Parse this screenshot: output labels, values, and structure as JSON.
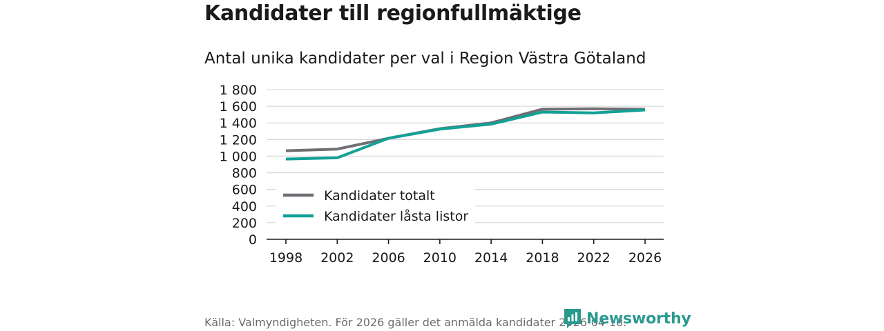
{
  "header": {
    "title": "Kandidater till regionfullmäktige",
    "subtitle": "Antal unika kandidater per val i Region Västra Götaland"
  },
  "footer": {
    "source": "Källa: Valmyndigheten. För 2026 gäller det anmälda kandidater 2026-04-10.",
    "logo_text": "Newsworthy"
  },
  "colors": {
    "series_total": "#6f6e73",
    "series_locked": "#12a196",
    "grid": "#d9d9d9",
    "axis": "#1a1a1a",
    "brand": "#2a9a8f"
  },
  "chart_data": {
    "type": "line",
    "title": "Kandidater till regionfullmäktige",
    "subtitle": "Antal unika kandidater per val i Region Västra Götaland",
    "xlabel": "",
    "ylabel": "",
    "x": [
      1998,
      2002,
      2006,
      2010,
      2014,
      2018,
      2022,
      2026
    ],
    "x_tick_labels": [
      "1998",
      "2002",
      "2006",
      "2010",
      "2014",
      "2018",
      "2022",
      "2026"
    ],
    "ylim": [
      0,
      1800
    ],
    "y_ticks": [
      0,
      200,
      400,
      600,
      800,
      1000,
      1200,
      1400,
      1600,
      1800
    ],
    "y_tick_labels": [
      "0",
      "200",
      "400",
      "600",
      "800",
      "1 000",
      "1 200",
      "1 400",
      "1 600",
      "1 800"
    ],
    "grid": true,
    "legend_position": "bottom-left",
    "series": [
      {
        "name": "Kandidater totalt",
        "values": [
          1065,
          1085,
          1215,
          1330,
          1400,
          1565,
          1570,
          1565
        ]
      },
      {
        "name": "Kandidater låsta listor",
        "values": [
          965,
          980,
          1215,
          1325,
          1385,
          1530,
          1520,
          1555
        ]
      }
    ]
  }
}
